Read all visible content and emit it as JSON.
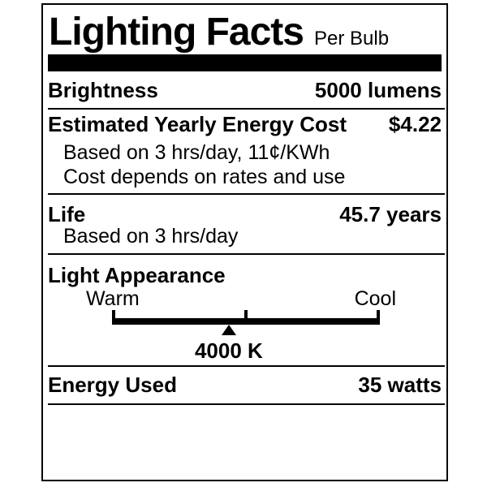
{
  "colors": {
    "ink": "#000000",
    "paper": "#ffffff"
  },
  "label": {
    "title": "Lighting Facts",
    "subtitle": "Per Bulb",
    "brightness": {
      "name": "Brightness",
      "value": "5000 lumens"
    },
    "energy_cost": {
      "name": "Estimated Yearly Energy Cost",
      "value": "$4.22",
      "notes": [
        "Based on 3 hrs/day, 11¢/KWh",
        "Cost depends on rates and use"
      ]
    },
    "life": {
      "name": "Life",
      "value": "45.7 years",
      "note": "Based on 3 hrs/day"
    },
    "light_appearance": {
      "name": "Light Appearance",
      "warm": "Warm",
      "cool": "Cool",
      "kelvin": "4000 K",
      "pointer_percent": 43.6
    },
    "energy_used": {
      "name": "Energy Used",
      "value": "35 watts"
    }
  }
}
